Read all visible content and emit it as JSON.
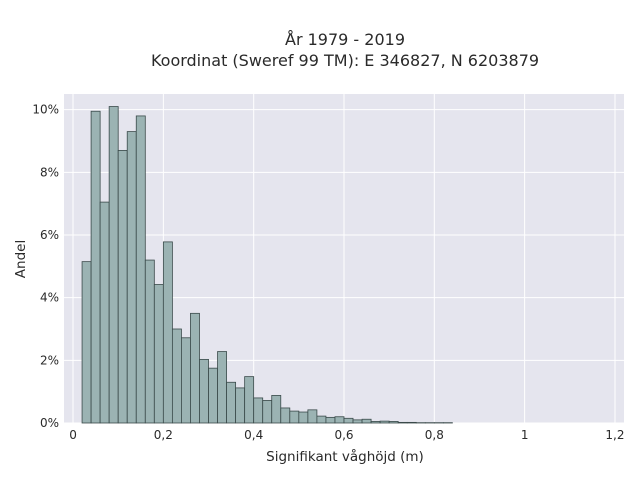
{
  "chart_data": {
    "type": "bar",
    "title_lines": [
      "År 1979 - 2019",
      "Koordinat (Sweref 99 TM): E 346827, N 6203879"
    ],
    "xlabel": "Signifikant våghöjd (m)",
    "ylabel": "Andel",
    "xlim": [
      -0.02,
      1.22
    ],
    "ylim": [
      0,
      10.5
    ],
    "xticks": [
      {
        "value": 0,
        "label": "0"
      },
      {
        "value": 0.2,
        "label": "0,2"
      },
      {
        "value": 0.4,
        "label": "0,4"
      },
      {
        "value": 0.6,
        "label": "0,6"
      },
      {
        "value": 0.8,
        "label": "0,8"
      },
      {
        "value": 1,
        "label": "1"
      },
      {
        "value": 1.2,
        "label": "1,2"
      }
    ],
    "yticks": [
      {
        "value": 0,
        "label": "0%"
      },
      {
        "value": 2,
        "label": "2%"
      },
      {
        "value": 4,
        "label": "4%"
      },
      {
        "value": 6,
        "label": "6%"
      },
      {
        "value": 8,
        "label": "8%"
      },
      {
        "value": 10,
        "label": "10%"
      }
    ],
    "bin_start": 0.02,
    "bin_width": 0.02,
    "values_percent": [
      5.15,
      9.95,
      7.05,
      10.1,
      8.7,
      9.3,
      9.8,
      5.2,
      4.42,
      5.78,
      3.0,
      2.72,
      3.5,
      2.03,
      1.75,
      2.28,
      1.3,
      1.12,
      1.48,
      0.8,
      0.72,
      0.88,
      0.48,
      0.38,
      0.35,
      0.42,
      0.22,
      0.18,
      0.2,
      0.15,
      0.1,
      0.12,
      0.05,
      0.06,
      0.05,
      0.02,
      0.02,
      0.01,
      0.01,
      0.01,
      0.01,
      0.0
    ],
    "grid": true,
    "colors": {
      "plot_background": "#e5e5ee",
      "grid": "#ffffff",
      "bar_fill": "#9bb3b3",
      "bar_edge": "#3a4a4a"
    }
  }
}
